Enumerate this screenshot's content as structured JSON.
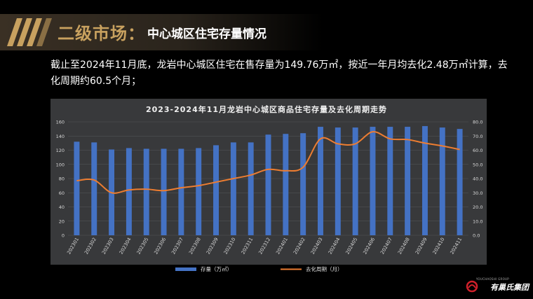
{
  "header": {
    "main": "二级市场：",
    "sub": "中心城区住宅存量情况"
  },
  "description": "截止至2024年11月底，龙岩中心城区住宅在售存量为149.76万㎡，按近一年月均去化2.48万㎡计算，去化周期约60.5个月；",
  "brand": {
    "name": "有巢氏集团",
    "tagline": "YOUCHAOSHI GROUP"
  },
  "colors": {
    "bar": "#4472c4",
    "line": "#ed7d31",
    "accent_gold": "#c8a15f"
  },
  "chart_data": {
    "type": "bar",
    "title": "2023-2024年11月龙岩中心城区商品住宅存量及去化周期走势",
    "categories": [
      "202301",
      "202302",
      "202303",
      "202304",
      "202305",
      "202306",
      "202307",
      "202308",
      "202309",
      "202310",
      "202311",
      "202312",
      "202401",
      "202402",
      "202403",
      "202404",
      "202405",
      "202406",
      "202407",
      "202408",
      "202409",
      "202410",
      "202411"
    ],
    "series": [
      {
        "name": "存量（万㎡）",
        "type": "bar",
        "axis": "left",
        "values": [
          132,
          131,
          121,
          123,
          122,
          122,
          122,
          123,
          127,
          131,
          131,
          142,
          143,
          144,
          153,
          152,
          152,
          153,
          153,
          153,
          154,
          152,
          150
        ]
      },
      {
        "name": "去化周期（月）",
        "type": "line",
        "axis": "right",
        "values": [
          38.5,
          39,
          30,
          32,
          32.5,
          31.5,
          33.5,
          35,
          37.5,
          40,
          42.5,
          46.5,
          45.5,
          48,
          68,
          64.5,
          64.5,
          73,
          68,
          67.5,
          65,
          63,
          60.5
        ]
      }
    ],
    "ylim_left": [
      0,
      160
    ],
    "yticks_left": [
      "0",
      "20",
      "40",
      "60",
      "80",
      "100",
      "120",
      "140",
      "160"
    ],
    "ylim_right": [
      0,
      80
    ],
    "yticks_right": [
      "0.0",
      "10.0",
      "20.0",
      "30.0",
      "40.0",
      "50.0",
      "60.0",
      "70.0",
      "80.0"
    ],
    "legend": "bottom",
    "grid": true
  }
}
